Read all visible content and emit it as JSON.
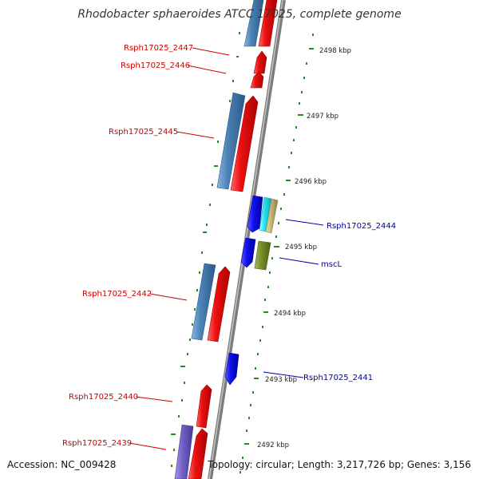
{
  "title": "Rhodobacter sphaeroides ATCC 17025, complete genome",
  "footer": {
    "accession": "Accession: NC_009428",
    "summary": "Topology: circular; Length: 3,217,726 bp; Genes: 3,156"
  },
  "colors": {
    "forward": "#ee1111",
    "reverse_blue": "#4d84b8",
    "cds_blue": "#1010ee",
    "cyan": "#22e6ee",
    "khaki": "#c8b87a",
    "olive": "#7a8e2a",
    "purple": "#7462c6",
    "label_red": "#cc0000",
    "label_blue": "#0000aa",
    "tick_green": "#2a8a2a",
    "backbone": "#8a8a8a"
  },
  "kbp_labels": [
    "2498 kbp",
    "2497 kbp",
    "2496 kbp",
    "2495 kbp",
    "2494 kbp",
    "2493 kbp",
    "2492 kbp"
  ],
  "gene_labels": [
    {
      "text": "Rsph17025_2447",
      "color": "red"
    },
    {
      "text": "Rsph17025_2446",
      "color": "red"
    },
    {
      "text": "Rsph17025_2445",
      "color": "red"
    },
    {
      "text": "Rsph17025_2444",
      "color": "blue"
    },
    {
      "text": "mscL",
      "color": "blue"
    },
    {
      "text": "Rsph17025_2442",
      "color": "red"
    },
    {
      "text": "Rsph17025_2441",
      "color": "blue"
    },
    {
      "text": "Rsph17025_2440",
      "color": "red"
    },
    {
      "text": "Rsph17025_2439",
      "color": "red"
    }
  ]
}
